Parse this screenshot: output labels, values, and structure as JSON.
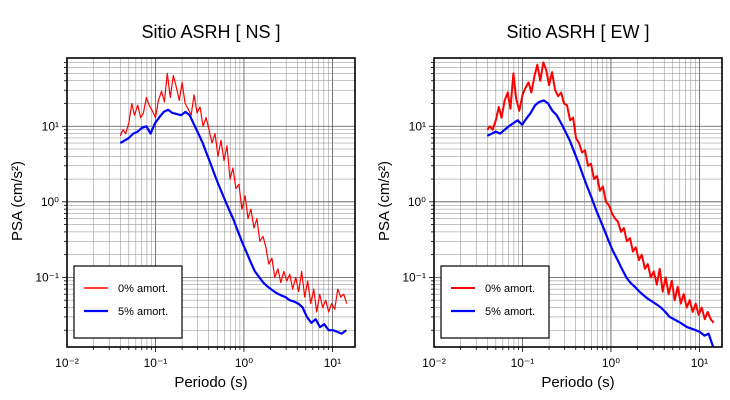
{
  "chart_data": [
    {
      "type": "line",
      "title": "Sitio ASRH [ NS ]",
      "xlabel": "Periodo (s)",
      "ylabel": "PSA (cm/s²)",
      "x_scale": "log",
      "y_scale": "log",
      "xlim": [
        0.01,
        18
      ],
      "ylim": [
        0.012,
        80
      ],
      "grid": true,
      "legend_position": "bottom-left",
      "x_ticks": [
        {
          "value": 0.01,
          "label": "10⁻²"
        },
        {
          "value": 0.1,
          "label": "10⁻¹"
        },
        {
          "value": 1,
          "label": "10⁰"
        },
        {
          "value": 10,
          "label": "10¹"
        }
      ],
      "y_ticks": [
        {
          "value": 0.1,
          "label": "10⁻¹"
        },
        {
          "value": 1,
          "label": "10⁰"
        },
        {
          "value": 10,
          "label": "10¹"
        }
      ],
      "series": [
        {
          "name": "0% amort.",
          "color": "#ff0000",
          "x": [
            0.04,
            0.043,
            0.046,
            0.05,
            0.054,
            0.058,
            0.063,
            0.068,
            0.073,
            0.079,
            0.085,
            0.092,
            0.1,
            0.108,
            0.117,
            0.126,
            0.136,
            0.147,
            0.159,
            0.172,
            0.186,
            0.2,
            0.216,
            0.234,
            0.253,
            0.273,
            0.295,
            0.319,
            0.345,
            0.373,
            0.403,
            0.436,
            0.471,
            0.509,
            0.55,
            0.595,
            0.643,
            0.695,
            0.751,
            0.812,
            0.878,
            0.949,
            1.03,
            1.11,
            1.2,
            1.3,
            1.4,
            1.51,
            1.64,
            1.77,
            1.91,
            2.07,
            2.23,
            2.42,
            2.61,
            2.82,
            3.05,
            3.3,
            3.56,
            3.85,
            4.16,
            4.5,
            4.86,
            5.26,
            5.68,
            6.14,
            6.64,
            7.18,
            7.76,
            8.39,
            9.07,
            9.8,
            10.6,
            11.5,
            12.4,
            13.4,
            14.5
          ],
          "values": [
            7.5,
            9.0,
            8.0,
            11.0,
            20.0,
            14.0,
            19.0,
            13.0,
            15.0,
            24.0,
            19.0,
            16.0,
            13.0,
            22.0,
            29.0,
            21.0,
            50.0,
            24.0,
            47.0,
            33.0,
            22.0,
            38.0,
            20.0,
            17.0,
            14.0,
            26.0,
            15.0,
            18.0,
            10.0,
            13.0,
            9.0,
            6.0,
            8.0,
            4.0,
            6.5,
            3.5,
            5.5,
            2.0,
            2.8,
            1.5,
            1.7,
            0.8,
            1.2,
            0.6,
            0.8,
            0.45,
            0.6,
            0.3,
            0.35,
            0.25,
            0.15,
            0.18,
            0.1,
            0.13,
            0.085,
            0.12,
            0.09,
            0.11,
            0.07,
            0.1,
            0.065,
            0.12,
            0.055,
            0.09,
            0.045,
            0.07,
            0.035,
            0.06,
            0.04,
            0.05,
            0.035,
            0.045,
            0.038,
            0.07,
            0.055,
            0.06,
            0.045
          ]
        },
        {
          "name": "5% amort.",
          "color": "#0000ff",
          "x": [
            0.04,
            0.045,
            0.05,
            0.056,
            0.063,
            0.07,
            0.079,
            0.088,
            0.099,
            0.11,
            0.124,
            0.139,
            0.155,
            0.174,
            0.195,
            0.218,
            0.244,
            0.273,
            0.306,
            0.342,
            0.383,
            0.429,
            0.48,
            0.538,
            0.602,
            0.674,
            0.755,
            0.845,
            0.946,
            1.06,
            1.19,
            1.33,
            1.49,
            1.66,
            1.86,
            2.09,
            2.34,
            2.62,
            2.93,
            3.28,
            3.67,
            4.11,
            4.6,
            5.15,
            5.77,
            6.46,
            7.23,
            8.1,
            9.06,
            10.1,
            11.4,
            12.7,
            14.3
          ],
          "values": [
            6.0,
            6.5,
            7.0,
            8.0,
            8.5,
            9.5,
            10.0,
            8.0,
            11.0,
            13.0,
            15.5,
            16.5,
            15.0,
            14.5,
            14.0,
            15.5,
            14.0,
            10.5,
            8.0,
            6.0,
            4.2,
            3.0,
            2.1,
            1.5,
            1.1,
            0.8,
            0.6,
            0.42,
            0.3,
            0.22,
            0.16,
            0.12,
            0.1,
            0.085,
            0.075,
            0.068,
            0.062,
            0.058,
            0.055,
            0.05,
            0.048,
            0.045,
            0.04,
            0.03,
            0.025,
            0.028,
            0.022,
            0.024,
            0.02,
            0.02,
            0.019,
            0.018,
            0.02
          ]
        }
      ]
    },
    {
      "type": "line",
      "title": "Sitio ASRH [ EW ]",
      "xlabel": "Periodo (s)",
      "ylabel": "PSA (cm/s²)",
      "x_scale": "log",
      "y_scale": "log",
      "xlim": [
        0.01,
        18
      ],
      "ylim": [
        0.012,
        80
      ],
      "grid": true,
      "legend_position": "bottom-left",
      "x_ticks": [
        {
          "value": 0.01,
          "label": "10⁻²"
        },
        {
          "value": 0.1,
          "label": "10⁻¹"
        },
        {
          "value": 1,
          "label": "10⁰"
        },
        {
          "value": 10,
          "label": "10¹"
        }
      ],
      "y_ticks": [
        {
          "value": 0.1,
          "label": "10⁻¹"
        },
        {
          "value": 1,
          "label": "10⁰"
        },
        {
          "value": 10,
          "label": "10¹"
        }
      ],
      "series": [
        {
          "name": "0% amort.",
          "color": "#ff0000",
          "x": [
            0.04,
            0.043,
            0.046,
            0.05,
            0.054,
            0.058,
            0.063,
            0.068,
            0.073,
            0.079,
            0.085,
            0.092,
            0.1,
            0.108,
            0.117,
            0.126,
            0.136,
            0.147,
            0.159,
            0.172,
            0.186,
            0.2,
            0.216,
            0.234,
            0.253,
            0.273,
            0.295,
            0.319,
            0.345,
            0.373,
            0.403,
            0.436,
            0.471,
            0.509,
            0.55,
            0.595,
            0.643,
            0.695,
            0.751,
            0.812,
            0.878,
            0.949,
            1.03,
            1.11,
            1.2,
            1.3,
            1.4,
            1.51,
            1.64,
            1.77,
            1.91,
            2.07,
            2.23,
            2.42,
            2.61,
            2.82,
            3.05,
            3.3,
            3.56,
            3.85,
            4.16,
            4.5,
            4.86,
            5.26,
            5.68,
            6.14,
            6.64,
            7.18,
            7.76,
            8.39,
            9.07,
            9.8,
            10.6,
            11.5,
            12.4,
            13.4,
            14.5
          ],
          "values": [
            9.0,
            10.0,
            9.0,
            12.0,
            18.0,
            13.0,
            22.0,
            28.0,
            17.0,
            50.0,
            23.0,
            16.0,
            26.0,
            32.0,
            38.0,
            28.0,
            45.0,
            65.0,
            40.0,
            70.0,
            55.0,
            35.0,
            52.0,
            30.0,
            25.0,
            28.0,
            20.0,
            19.0,
            12.0,
            13.0,
            7.0,
            6.0,
            4.5,
            4.8,
            3.0,
            3.2,
            2.0,
            2.2,
            1.4,
            1.6,
            1.0,
            0.9,
            0.7,
            0.6,
            0.55,
            0.4,
            0.45,
            0.3,
            0.33,
            0.22,
            0.25,
            0.17,
            0.2,
            0.13,
            0.15,
            0.1,
            0.12,
            0.08,
            0.13,
            0.065,
            0.1,
            0.06,
            0.09,
            0.05,
            0.075,
            0.045,
            0.06,
            0.04,
            0.05,
            0.035,
            0.045,
            0.032,
            0.04,
            0.028,
            0.035,
            0.028,
            0.025
          ]
        },
        {
          "name": "5% amort.",
          "color": "#0000ff",
          "x": [
            0.04,
            0.045,
            0.05,
            0.056,
            0.063,
            0.07,
            0.079,
            0.088,
            0.099,
            0.11,
            0.124,
            0.139,
            0.155,
            0.174,
            0.195,
            0.218,
            0.244,
            0.273,
            0.306,
            0.342,
            0.383,
            0.429,
            0.48,
            0.538,
            0.602,
            0.674,
            0.755,
            0.845,
            0.946,
            1.06,
            1.19,
            1.33,
            1.49,
            1.66,
            1.86,
            2.09,
            2.34,
            2.62,
            2.93,
            3.28,
            3.67,
            4.11,
            4.6,
            5.15,
            5.77,
            6.46,
            7.23,
            8.1,
            9.06,
            10.1,
            11.4,
            12.7,
            14.3
          ],
          "values": [
            7.5,
            8.0,
            8.5,
            8.0,
            9.0,
            10.0,
            11.0,
            12.0,
            10.5,
            12.5,
            15.0,
            19.0,
            21.0,
            22.0,
            20.0,
            16.0,
            14.0,
            11.0,
            8.5,
            6.5,
            4.6,
            3.3,
            2.3,
            1.6,
            1.15,
            0.8,
            0.58,
            0.42,
            0.3,
            0.22,
            0.17,
            0.13,
            0.1,
            0.085,
            0.075,
            0.065,
            0.058,
            0.052,
            0.048,
            0.044,
            0.04,
            0.035,
            0.03,
            0.028,
            0.026,
            0.024,
            0.022,
            0.021,
            0.02,
            0.019,
            0.017,
            0.018,
            0.012
          ]
        }
      ]
    }
  ]
}
